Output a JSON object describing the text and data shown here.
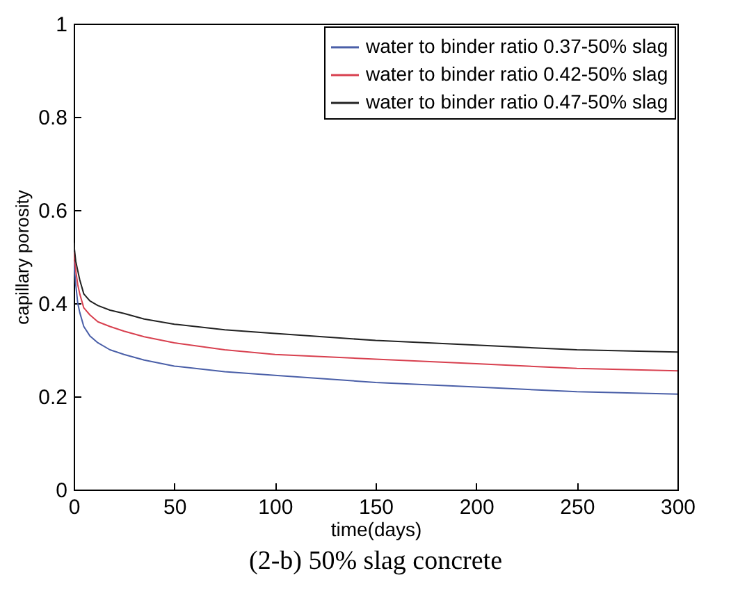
{
  "chart_data": {
    "type": "line",
    "title": "(2-b) 50% slag concrete",
    "xlabel": "time(days)",
    "ylabel": "capillary porosity",
    "x": [
      0,
      1,
      2,
      3,
      5,
      8,
      12,
      18,
      25,
      35,
      50,
      75,
      100,
      150,
      200,
      250,
      300
    ],
    "series": [
      {
        "name": "water to binder ratio 0.37-50% slag",
        "color": "#4a5fa8",
        "values": [
          0.49,
          0.44,
          0.4,
          0.38,
          0.35,
          0.33,
          0.315,
          0.3,
          0.29,
          0.278,
          0.265,
          0.253,
          0.245,
          0.23,
          0.22,
          0.21,
          0.205
        ]
      },
      {
        "name": "water to binder ratio 0.42-50% slag",
        "color": "#d8404f",
        "values": [
          0.51,
          0.47,
          0.44,
          0.42,
          0.39,
          0.375,
          0.36,
          0.35,
          0.34,
          0.328,
          0.315,
          0.3,
          0.29,
          0.28,
          0.27,
          0.26,
          0.255
        ]
      },
      {
        "name": "water to binder ratio 0.47-50% slag",
        "color": "#222222",
        "values": [
          0.53,
          0.49,
          0.47,
          0.45,
          0.42,
          0.405,
          0.395,
          0.385,
          0.378,
          0.366,
          0.355,
          0.343,
          0.335,
          0.32,
          0.31,
          0.3,
          0.295
        ]
      }
    ],
    "xlim": [
      0,
      300
    ],
    "xticks": [
      0,
      50,
      100,
      150,
      200,
      250,
      300
    ],
    "ylim": [
      0,
      1
    ],
    "yticks": [
      0,
      0.2,
      0.4,
      0.6,
      0.8,
      1
    ],
    "legend": "top right",
    "grid": false,
    "line_style": "solid"
  }
}
